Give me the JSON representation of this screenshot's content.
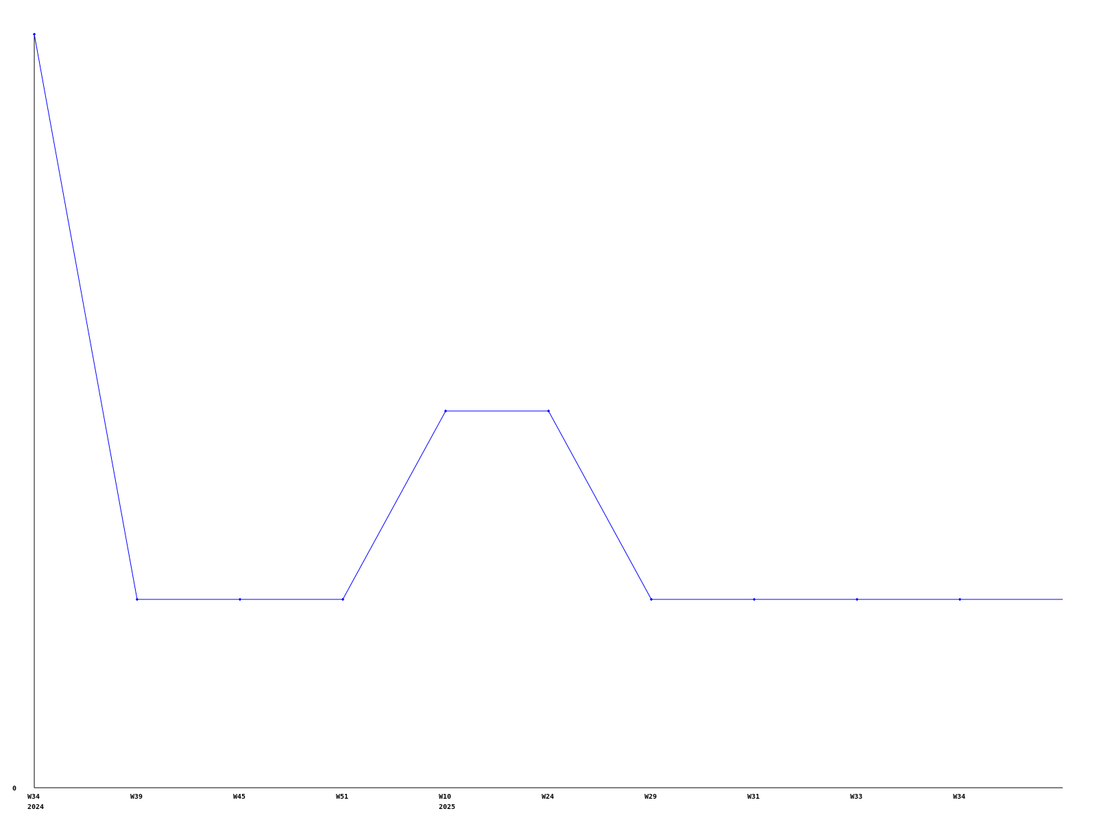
{
  "chart_data": {
    "type": "line",
    "title": "",
    "xlabel": "",
    "ylabel": "",
    "ylim": [
      0,
      4
    ],
    "y_tick_labels": [
      "0"
    ],
    "grid": false,
    "categories": [
      {
        "week": "W34",
        "year": "2024"
      },
      {
        "week": "W39",
        "year": ""
      },
      {
        "week": "W45",
        "year": ""
      },
      {
        "week": "W51",
        "year": ""
      },
      {
        "week": "W10",
        "year": "2025"
      },
      {
        "week": "W24",
        "year": ""
      },
      {
        "week": "W29",
        "year": ""
      },
      {
        "week": "W31",
        "year": ""
      },
      {
        "week": "W33",
        "year": ""
      },
      {
        "week": "W34",
        "year": ""
      }
    ],
    "series": [
      {
        "values": [
          4,
          1,
          1,
          1,
          2,
          2,
          1,
          1,
          1,
          1
        ],
        "color": "#0000ff"
      }
    ],
    "axis_color": "#000000"
  }
}
